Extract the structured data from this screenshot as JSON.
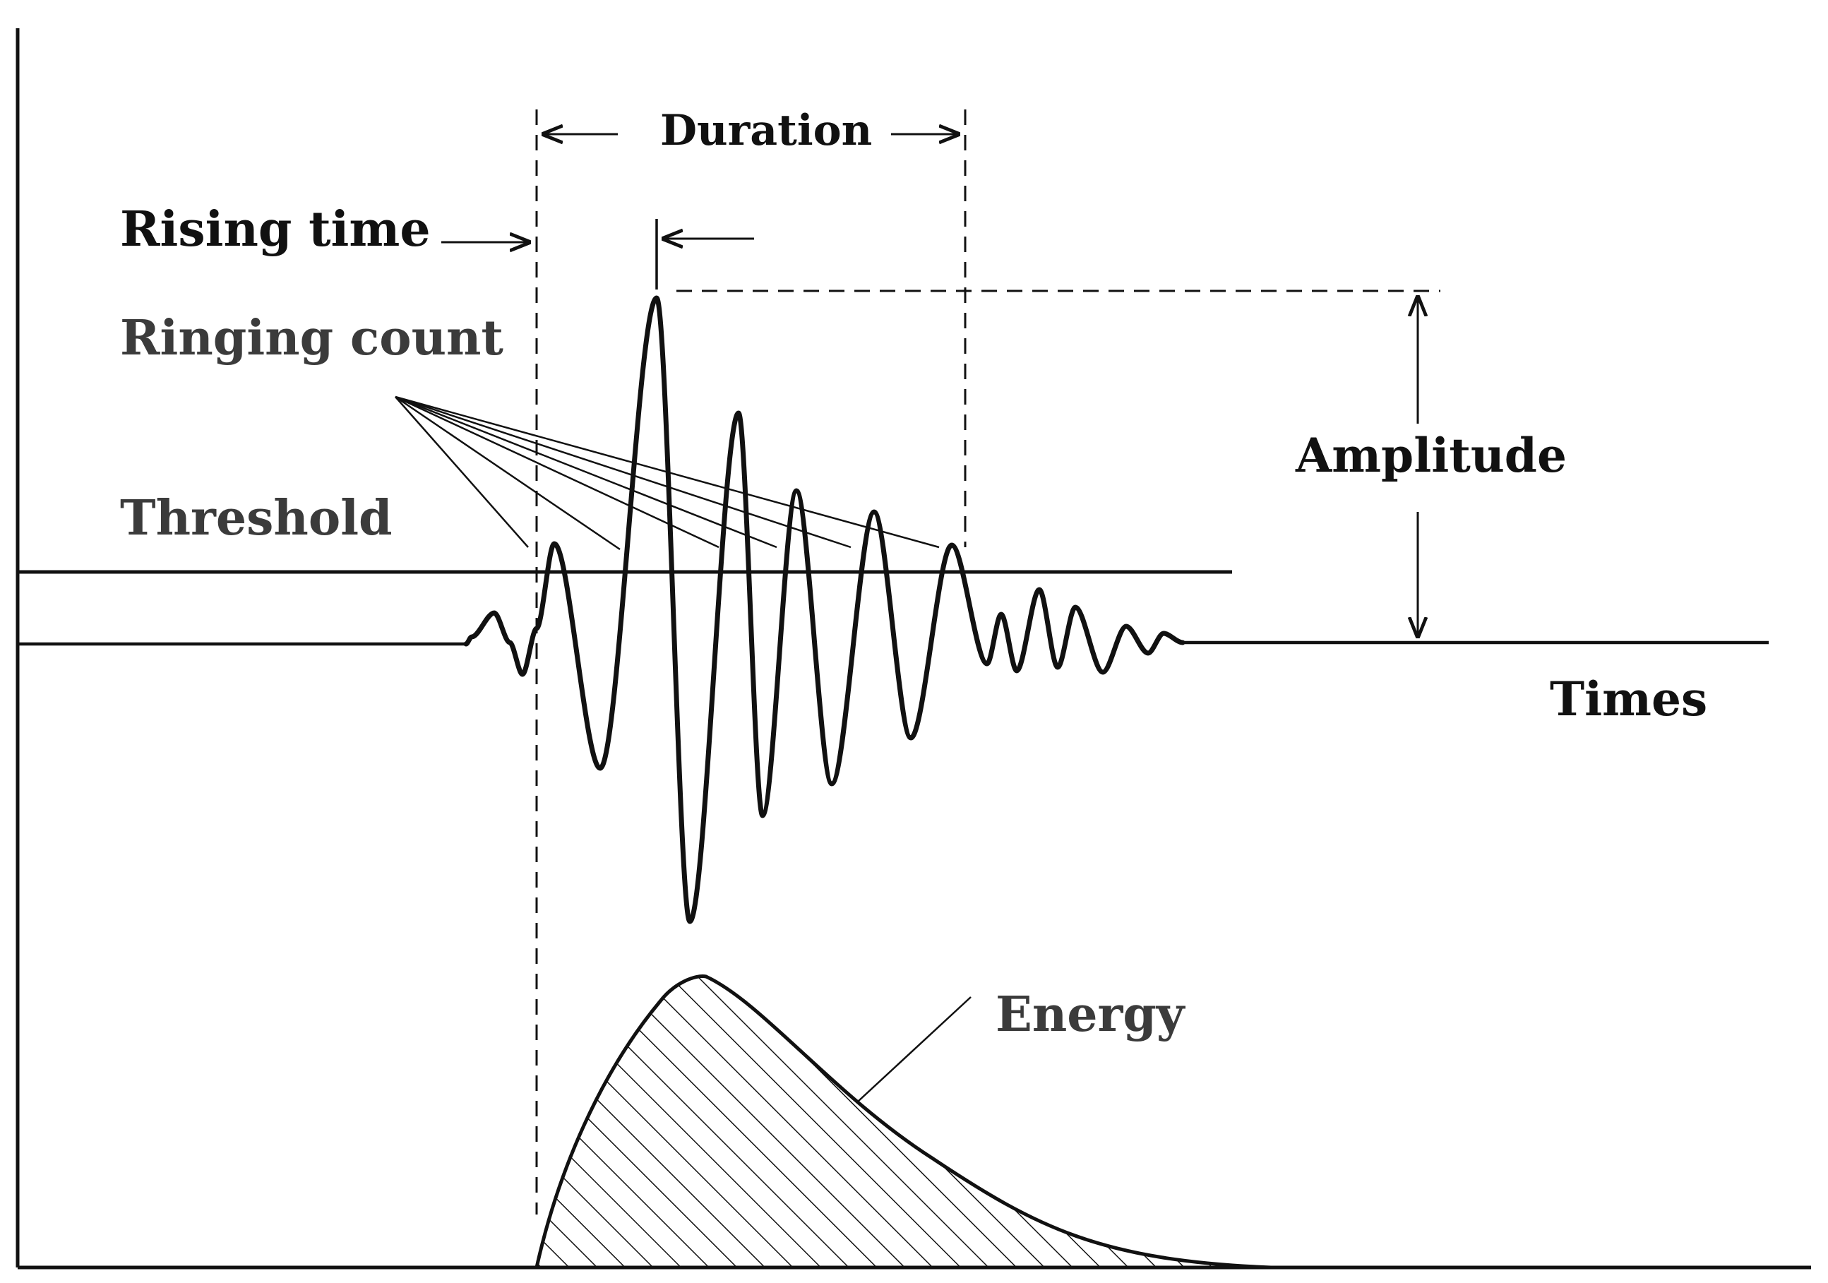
{
  "labels": {
    "duration": "Duration",
    "rising_time": "Rising time",
    "ringing_count": "Ringing count",
    "threshold": "Threshold",
    "amplitude": "Amplitude",
    "times": "Times",
    "energy": "Energy"
  },
  "colors": {
    "ink": "#111111",
    "label_gray": "#3b3b3b",
    "background": "#ffffff"
  }
}
